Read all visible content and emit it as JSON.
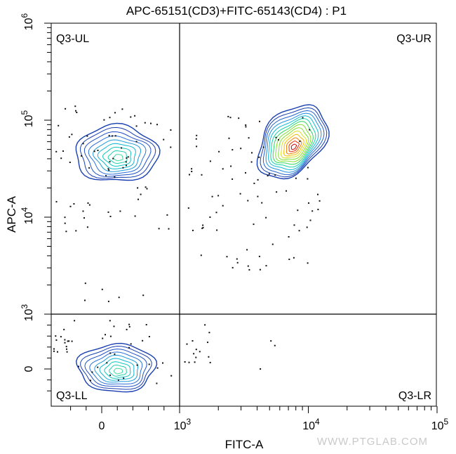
{
  "chart_data": {
    "type": "contour",
    "title": "APC-65151(CD3)+FITC-65143(CD4) : P1",
    "xlabel": "FITC-A",
    "ylabel": "APC-A",
    "x_scale": "biexponential",
    "y_scale": "biexponential",
    "xlim": [
      -500,
      100000
    ],
    "ylim": [
      -600,
      1000000
    ],
    "x_ticks": [
      {
        "value": 0,
        "label": "0"
      },
      {
        "value": 1000,
        "label": "10",
        "exp": "3"
      },
      {
        "value": 10000,
        "label": "10",
        "exp": "4"
      },
      {
        "value": 100000,
        "label": "10",
        "exp": "5"
      }
    ],
    "y_ticks": [
      {
        "value": 0,
        "label": "0"
      },
      {
        "value": 1000,
        "label": "10",
        "exp": "3"
      },
      {
        "value": 10000,
        "label": "10",
        "exp": "4"
      },
      {
        "value": 100000,
        "label": "10",
        "exp": "5"
      },
      {
        "value": 1000000,
        "label": "10",
        "exp": "6"
      }
    ],
    "gates": {
      "x": 1000,
      "y": 1000
    },
    "quadrants": [
      {
        "name": "Q3-UL",
        "position": "top-left"
      },
      {
        "name": "Q3-UR",
        "position": "top-right"
      },
      {
        "name": "Q3-LL",
        "position": "bottom-left"
      },
      {
        "name": "Q3-LR",
        "position": "bottom-right"
      }
    ],
    "populations": [
      {
        "quadrant": "Q3-UL",
        "center": [
          190,
          45000
        ],
        "peak_color": "#00d0a0"
      },
      {
        "quadrant": "Q3-UR",
        "center": [
          7500,
          60000
        ],
        "peak_color": "#e00000"
      },
      {
        "quadrant": "Q3-LL",
        "center": [
          190,
          20
        ],
        "peak_color": "#00b0a0"
      }
    ],
    "colors": {
      "outer_contour": "#1a3fb0",
      "gate_line": "#000000"
    }
  },
  "watermark": "WWW.PTGLAB.COM"
}
